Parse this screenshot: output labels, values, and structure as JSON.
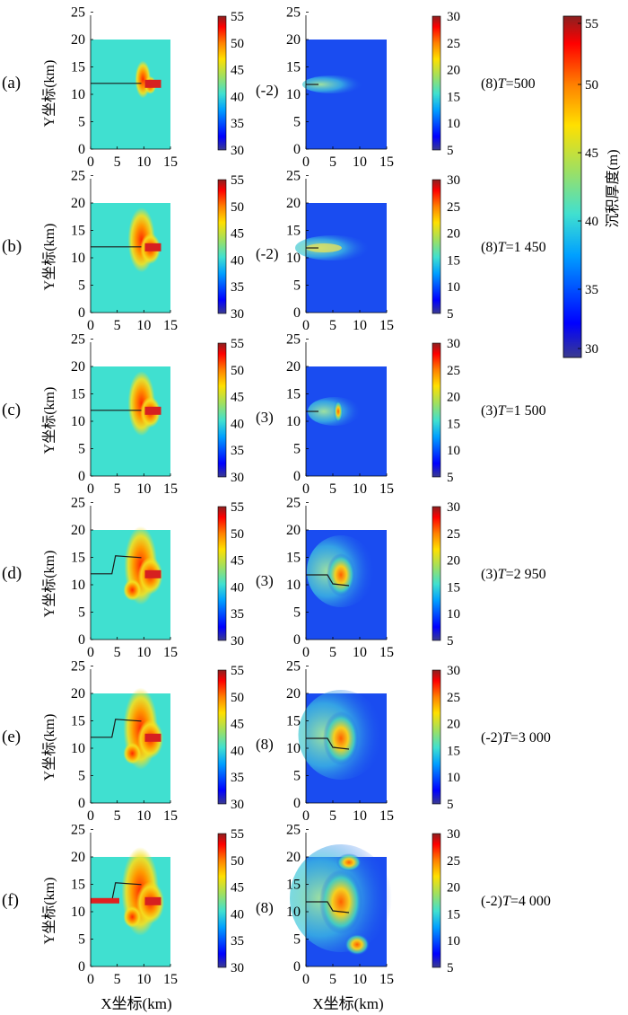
{
  "figure": {
    "y_label": "Y坐标(km)",
    "x_label": "X坐标(km)",
    "main_colorbar": {
      "label": "沉积厚度(m)",
      "ticks": [
        "30",
        "35",
        "40",
        "45",
        "50",
        "55"
      ]
    },
    "left_colorbar_ticks": [
      "30",
      "35",
      "40",
      "45",
      "50",
      "55"
    ],
    "right_colorbar_ticks": [
      "5",
      "10",
      "15",
      "20",
      "25",
      "30"
    ],
    "x_ticks": [
      "0",
      "5",
      "10",
      "15"
    ],
    "y_ticks": [
      "0",
      "5",
      "10",
      "15",
      "20",
      "25"
    ],
    "colors": {
      "background_left": "#40e0d0",
      "background_right": "#1a4cf0",
      "accent_red": "#e02020",
      "accent_yellow": "#f0d020",
      "colormap": [
        "#3b3b8f",
        "#0000ff",
        "#00a0ff",
        "#40e0d0",
        "#a0e060",
        "#ffe000",
        "#ff8000",
        "#ff0000",
        "#8b2020"
      ]
    }
  },
  "chart_data": {
    "type": "heatmap",
    "xlim": [
      0,
      15
    ],
    "ylim": [
      0,
      25
    ],
    "left_clim": [
      30,
      55
    ],
    "right_clim": [
      5,
      30
    ],
    "panels": [
      {
        "label": "(a)",
        "mid_label": "(-2)",
        "annotation": "(8)T=500",
        "anno_prefix": "(8)",
        "anno_T": "T",
        "anno_value": "=500"
      },
      {
        "label": "(b)",
        "mid_label": "(-2)",
        "annotation": "(8)T=1 450",
        "anno_prefix": "(8)",
        "anno_T": "T",
        "anno_value": "=1 450"
      },
      {
        "label": "(c)",
        "mid_label": "(3)",
        "annotation": "(3)T=1 500",
        "anno_prefix": "(3)",
        "anno_T": "T",
        "anno_value": "=1 500"
      },
      {
        "label": "(d)",
        "mid_label": "(3)",
        "annotation": "(3)T=2 950",
        "anno_prefix": "(3)",
        "anno_T": "T",
        "anno_value": "=2 950"
      },
      {
        "label": "(e)",
        "mid_label": "(8)",
        "annotation": "(-2)T=3 000",
        "anno_prefix": "(-2)",
        "anno_T": "T",
        "anno_value": "=3 000"
      },
      {
        "label": "(f)",
        "mid_label": "(8)",
        "annotation": "(-2)T=4 000",
        "anno_prefix": "(-2)",
        "anno_T": "T",
        "anno_value": "=4 000"
      }
    ]
  }
}
